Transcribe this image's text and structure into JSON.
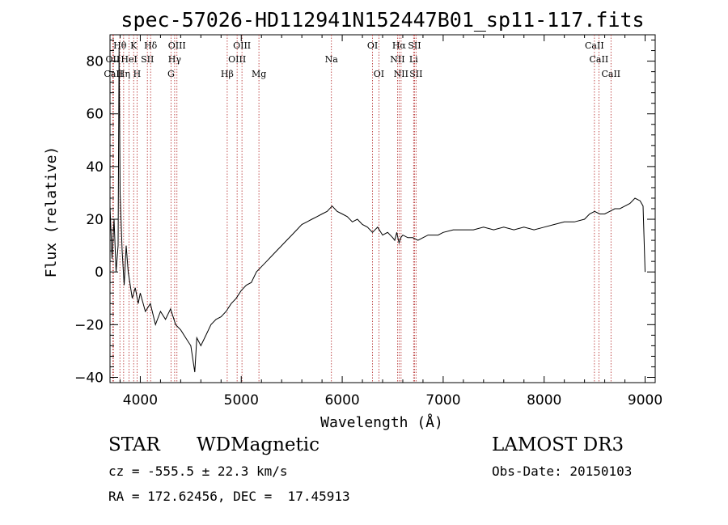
{
  "chart_data": {
    "type": "line",
    "title": "spec-57026-HD112941N152447B01_sp11-117.fits",
    "xlabel": "Wavelength (Å)",
    "ylabel": "Flux (relative)",
    "xlim": [
      3700,
      9100
    ],
    "ylim": [
      -42,
      90
    ],
    "x_ticks": [
      4000,
      5000,
      6000,
      7000,
      8000,
      9000
    ],
    "y_ticks": [
      -40,
      -20,
      0,
      20,
      40,
      60,
      80
    ],
    "grid": false,
    "series": [
      {
        "x": [
          3700,
          3720,
          3740,
          3760,
          3780,
          3790,
          3800,
          3820,
          3840,
          3860,
          3880,
          3900,
          3920,
          3950,
          3980,
          4000,
          4050,
          4100,
          4150,
          4200,
          4250,
          4300,
          4350,
          4400,
          4450,
          4500,
          4540,
          4560,
          4600,
          4650,
          4700,
          4750,
          4800,
          4850,
          4900,
          4950,
          5000,
          5050,
          5100,
          5150,
          5200,
          5250,
          5300,
          5350,
          5400,
          5450,
          5500,
          5550,
          5600,
          5650,
          5700,
          5750,
          5800,
          5850,
          5900,
          5950,
          6000,
          6050,
          6100,
          6150,
          6200,
          6250,
          6300,
          6350,
          6400,
          6450,
          6500,
          6520,
          6540,
          6563,
          6580,
          6600,
          6650,
          6700,
          6750,
          6800,
          6850,
          6900,
          6950,
          7000,
          7100,
          7200,
          7300,
          7400,
          7500,
          7600,
          7700,
          7800,
          7900,
          8000,
          8100,
          8200,
          8300,
          8400,
          8450,
          8500,
          8550,
          8600,
          8650,
          8700,
          8750,
          8800,
          8850,
          8900,
          8950,
          8980,
          9000
        ],
        "values": [
          25,
          5,
          20,
          0,
          10,
          85,
          30,
          8,
          -5,
          10,
          0,
          -5,
          -10,
          -6,
          -12,
          -8,
          -15,
          -12,
          -20,
          -15,
          -18,
          -14,
          -20,
          -22,
          -25,
          -28,
          -38,
          -25,
          -28,
          -24,
          -20,
          -18,
          -17,
          -15,
          -12,
          -10,
          -7,
          -5,
          -4,
          0,
          2,
          4,
          6,
          8,
          10,
          12,
          14,
          16,
          18,
          19,
          20,
          21,
          22,
          23,
          25,
          23,
          22,
          21,
          19,
          20,
          18,
          17,
          15,
          17,
          14,
          15,
          13,
          12,
          15,
          11,
          13,
          14,
          13,
          13,
          12,
          13,
          14,
          14,
          14,
          15,
          16,
          16,
          16,
          17,
          16,
          17,
          16,
          17,
          16,
          17,
          18,
          19,
          19,
          20,
          22,
          23,
          22,
          22,
          23,
          24,
          24,
          25,
          26,
          28,
          27,
          25,
          0
        ]
      }
    ],
    "line_annotations": [
      {
        "label": "Hθ",
        "x": 3798,
        "row": 1
      },
      {
        "label": "OII",
        "x": 3727,
        "row": 2
      },
      {
        "label": "CaII",
        "x": 3734,
        "row": 3
      },
      {
        "label": "Hη",
        "x": 3835,
        "row": 3
      },
      {
        "label": "HeI",
        "x": 3889,
        "row": 2
      },
      {
        "label": "K",
        "x": 3934,
        "row": 1
      },
      {
        "label": "SII",
        "x": 4070,
        "row": 2
      },
      {
        "label": "H",
        "x": 3968,
        "row": 3
      },
      {
        "label": "Hδ",
        "x": 4102,
        "row": 1
      },
      {
        "label": "OIII",
        "x": 4363,
        "row": 1
      },
      {
        "label": "Hγ",
        "x": 4340,
        "row": 2
      },
      {
        "label": "G",
        "x": 4304,
        "row": 3
      },
      {
        "label": "Hβ",
        "x": 4861,
        "row": 3
      },
      {
        "label": "OIII",
        "x": 5007,
        "row": 1
      },
      {
        "label": "OIII",
        "x": 4959,
        "row": 2
      },
      {
        "label": "Mg",
        "x": 5175,
        "row": 3
      },
      {
        "label": "Na",
        "x": 5893,
        "row": 2
      },
      {
        "label": "OI",
        "x": 6300,
        "row": 1
      },
      {
        "label": "OI",
        "x": 6363,
        "row": 3
      },
      {
        "label": "Hα",
        "x": 6563,
        "row": 1
      },
      {
        "label": "SII",
        "x": 6716,
        "row": 1
      },
      {
        "label": "NII",
        "x": 6548,
        "row": 2
      },
      {
        "label": "Li",
        "x": 6707,
        "row": 2
      },
      {
        "label": "NII",
        "x": 6583,
        "row": 3
      },
      {
        "label": "SII",
        "x": 6731,
        "row": 3
      },
      {
        "label": "CaII",
        "x": 8498,
        "row": 1
      },
      {
        "label": "CaII",
        "x": 8542,
        "row": 2
      },
      {
        "label": "CaII",
        "x": 8662,
        "row": 3
      }
    ]
  },
  "info": {
    "class_label": "STAR",
    "subclass_label": "WDMagnetic",
    "survey_label": "LAMOST DR3",
    "cz_text": "cz = -555.5 ± 22.3 km/s",
    "obs_date_text": "Obs-Date: 20150103",
    "coords_text": "RA = 172.62456, DEC =  17.45913"
  },
  "colors": {
    "spectrum": "#000000",
    "line_markers": "#b22222",
    "axes": "#000000"
  }
}
